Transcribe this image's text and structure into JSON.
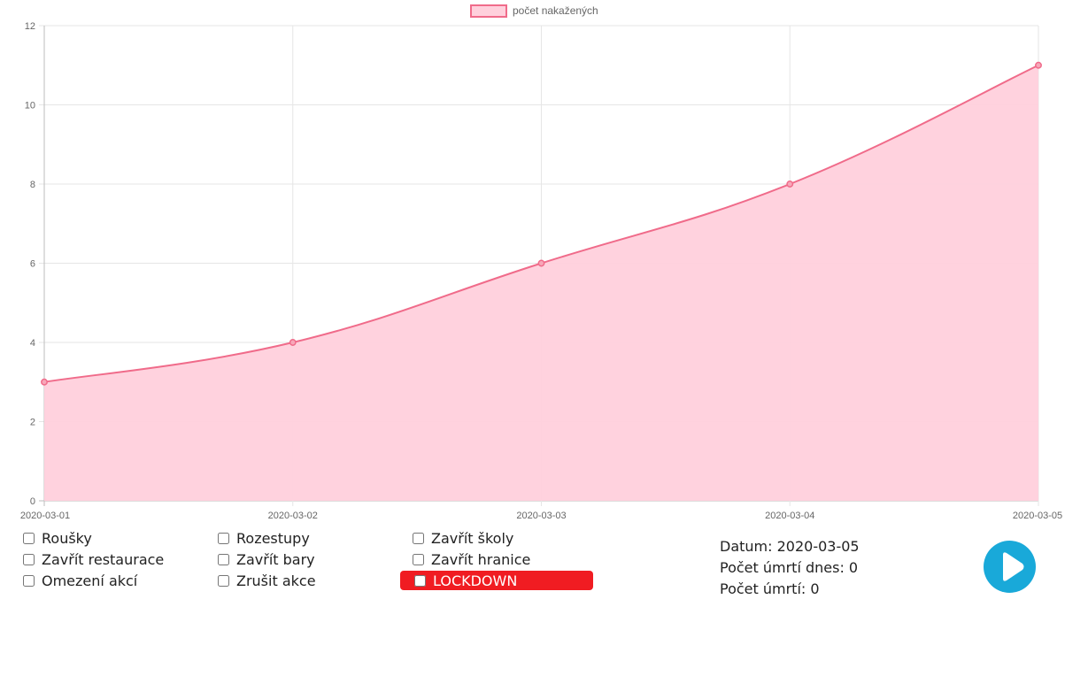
{
  "chart_data": {
    "type": "area",
    "x": [
      "2020-03-01",
      "2020-03-02",
      "2020-03-03",
      "2020-03-04",
      "2020-03-05"
    ],
    "series": [
      {
        "name": "počet nakažených",
        "values": [
          3,
          4,
          6,
          8,
          11
        ]
      }
    ],
    "ylim": [
      0,
      12
    ],
    "yticks": [
      0,
      2,
      4,
      6,
      8,
      10,
      12
    ],
    "grid": true,
    "legend": "top-center",
    "line_color": "#f06b8a",
    "fill_color": "#ffd0dc"
  },
  "options": {
    "rousky": "Roušky",
    "rozestupy": "Rozestupy",
    "zavrit_skoly": "Zavřít školy",
    "zavrit_restaurace": "Zavřít restaurace",
    "zavrit_bary": "Zavřít bary",
    "zavrit_hranice": "Zavřít hranice",
    "omezeni_akci": "Omezení akcí",
    "zrusit_akce": "Zrušit akce",
    "lockdown": "LOCKDOWN"
  },
  "info": {
    "datum": "Datum: 2020-03-05",
    "umrti_dnes": "Počet úmrtí dnes: 0",
    "umrti": "Počet úmrtí: 0"
  },
  "colors": {
    "lockdown": "#f01c22",
    "play": "#19a9d9"
  },
  "play_icon": "play-icon"
}
